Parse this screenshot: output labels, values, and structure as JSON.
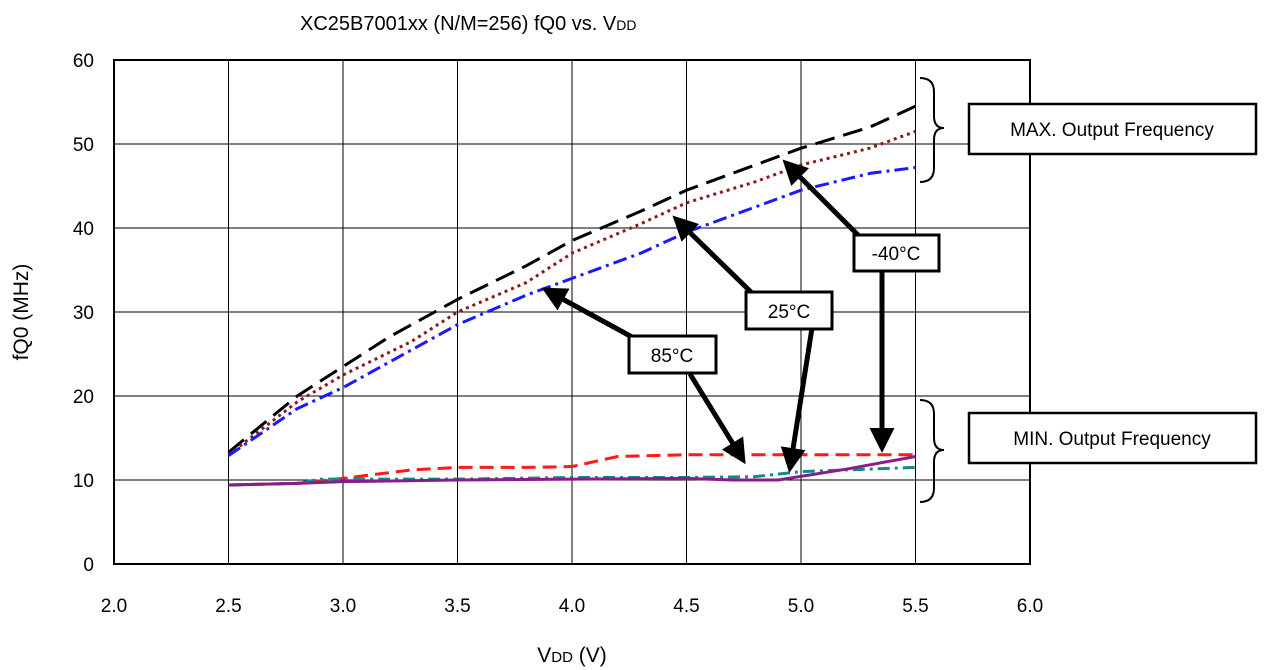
{
  "chart_data": {
    "type": "line",
    "title": "XC25B7001xx (N/M=256)  fQ0 vs. VDD",
    "title_main": "XC25B7001xx (N/M=256)  fQ0 vs. V",
    "title_sub": "DD",
    "xlabel": "VDD (V)",
    "xlabel_main": "V",
    "xlabel_sub": "DD",
    "xlabel_unit": " (V)",
    "ylabel": "fQ0 (MHz)",
    "xlim": [
      2.0,
      6.0
    ],
    "ylim": [
      0,
      60
    ],
    "x_ticks": [
      "2.0",
      "2.5",
      "3.0",
      "3.5",
      "4.0",
      "4.5",
      "5.0",
      "5.5",
      "6.0"
    ],
    "y_ticks": [
      "0",
      "10",
      "20",
      "30",
      "40",
      "50",
      "60"
    ],
    "grid": true,
    "legend": "none",
    "series": [
      {
        "color": "#000000",
        "dash": "20,9",
        "points": [
          [
            2.5,
            13.3
          ],
          [
            2.8,
            20.0
          ],
          [
            3.0,
            23.5
          ],
          [
            3.2,
            27.0
          ],
          [
            3.5,
            31.5
          ],
          [
            3.8,
            35.5
          ],
          [
            4.0,
            38.5
          ],
          [
            4.3,
            42.0
          ],
          [
            4.5,
            44.5
          ],
          [
            4.8,
            47.5
          ],
          [
            5.0,
            49.5
          ],
          [
            5.3,
            52.0
          ],
          [
            5.5,
            54.5
          ]
        ]
      },
      {
        "color": "#8B1A1A",
        "dash": "3,4",
        "points": [
          [
            2.5,
            13.0
          ],
          [
            2.8,
            19.3
          ],
          [
            3.0,
            22.5
          ],
          [
            3.3,
            26.5
          ],
          [
            3.5,
            30.0
          ],
          [
            3.8,
            33.5
          ],
          [
            4.0,
            37.0
          ],
          [
            4.3,
            40.5
          ],
          [
            4.5,
            43.0
          ],
          [
            4.8,
            45.5
          ],
          [
            5.0,
            47.5
          ],
          [
            5.3,
            49.5
          ],
          [
            5.5,
            51.5
          ]
        ]
      },
      {
        "color": "#1a1aff",
        "dash": "14,5,3,5",
        "points": [
          [
            2.5,
            12.9
          ],
          [
            2.8,
            18.5
          ],
          [
            3.0,
            21.0
          ],
          [
            3.3,
            25.5
          ],
          [
            3.5,
            28.5
          ],
          [
            3.8,
            32.0
          ],
          [
            4.0,
            34.0
          ],
          [
            4.3,
            37.0
          ],
          [
            4.5,
            39.5
          ],
          [
            4.8,
            42.5
          ],
          [
            5.0,
            44.5
          ],
          [
            5.3,
            46.5
          ],
          [
            5.5,
            47.2
          ]
        ]
      },
      {
        "color": "#ff1a1a",
        "dash": "14,7",
        "points": [
          [
            2.5,
            9.4
          ],
          [
            2.8,
            9.6
          ],
          [
            3.0,
            10.2
          ],
          [
            3.3,
            11.2
          ],
          [
            3.5,
            11.5
          ],
          [
            3.8,
            11.5
          ],
          [
            4.0,
            11.6
          ],
          [
            4.2,
            12.8
          ],
          [
            4.5,
            13.0
          ],
          [
            5.0,
            13.0
          ],
          [
            5.5,
            13.0
          ]
        ]
      },
      {
        "color": "#138a8a",
        "dash": "12,5,3,5",
        "points": [
          [
            2.5,
            9.4
          ],
          [
            2.8,
            9.6
          ],
          [
            2.9,
            10.1
          ],
          [
            3.5,
            10.1
          ],
          [
            4.0,
            10.3
          ],
          [
            4.5,
            10.3
          ],
          [
            4.8,
            10.4
          ],
          [
            5.0,
            11.0
          ],
          [
            5.3,
            11.3
          ],
          [
            5.5,
            11.5
          ]
        ]
      },
      {
        "color": "#8B1A8B",
        "dash": "",
        "points": [
          [
            2.5,
            9.4
          ],
          [
            2.8,
            9.6
          ],
          [
            3.0,
            9.8
          ],
          [
            3.5,
            10.0
          ],
          [
            4.0,
            10.1
          ],
          [
            4.5,
            10.2
          ],
          [
            4.7,
            10.0
          ],
          [
            4.9,
            10.0
          ],
          [
            5.2,
            11.3
          ],
          [
            5.5,
            12.8
          ]
        ]
      }
    ],
    "annotations": {
      "max_label": "MAX. Output Frequency",
      "min_label": "MIN. Output Frequency",
      "temp_labels": [
        "-40°C",
        "25°C",
        "85°C"
      ]
    }
  }
}
